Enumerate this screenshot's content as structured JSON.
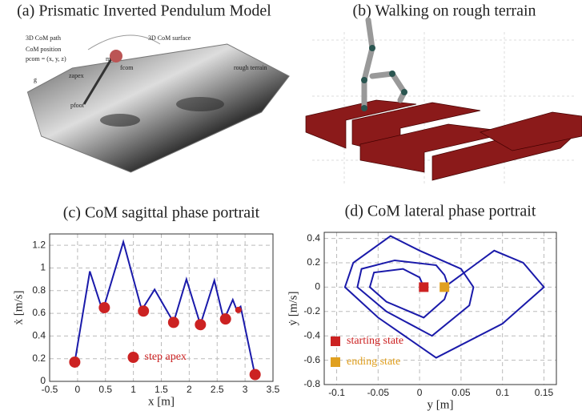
{
  "panels": [
    {
      "title": "(a) Prismatic Inverted Pendulum Model",
      "labels": [
        "3D CoM path",
        "3D CoM surface",
        "CoM position",
        "pcom = (x, y, z)",
        "zapex",
        "g",
        "fcom",
        "m",
        "rough terrain",
        "pfoot"
      ]
    },
    {
      "title": "(b) Walking on rough terrain"
    }
  ],
  "chart_data": [
    {
      "type": "line",
      "title": "(c) CoM sagittal phase portrait",
      "xlabel": "x [m]",
      "ylabel": "ẋ [m/s]",
      "xlim": [
        -0.5,
        3.5
      ],
      "ylim": [
        0,
        1.3
      ],
      "xticks": [
        -0.5,
        0,
        0.5,
        1,
        1.5,
        2,
        2.5,
        3,
        3.5
      ],
      "yticks": [
        0,
        0.2,
        0.4,
        0.6,
        0.8,
        1,
        1.2
      ],
      "grid": true,
      "legend": "lower center",
      "series": [
        {
          "color": "#1a1aaa",
          "x": [
            -0.05,
            0.22,
            0.45,
            0.82,
            1.15,
            1.38,
            1.72,
            1.95,
            2.2,
            2.45,
            2.62,
            2.78,
            2.85,
            2.92,
            3.18
          ],
          "values": [
            0.17,
            0.97,
            0.62,
            1.23,
            0.63,
            0.81,
            0.52,
            0.9,
            0.5,
            0.89,
            0.54,
            0.72,
            0.63,
            0.66,
            0.05
          ]
        },
        {
          "name": "step apex",
          "type": "scatter",
          "marker": "circle",
          "color": "#cc2222",
          "x": [
            -0.05,
            0.48,
            1.18,
            1.72,
            2.2,
            2.65,
            2.88,
            3.18
          ],
          "values": [
            0.17,
            0.65,
            0.62,
            0.52,
            0.5,
            0.55,
            0.63,
            0.06
          ]
        }
      ]
    },
    {
      "type": "line",
      "title": "(d) CoM lateral phase portrait",
      "xlabel": "y [m]",
      "ylabel": "ẏ [m/s]",
      "xlim": [
        -0.115,
        0.165
      ],
      "ylim": [
        -0.8,
        0.45
      ],
      "xticks": [
        -0.1,
        -0.05,
        0,
        0.05,
        0.1,
        0.15
      ],
      "yticks": [
        -0.8,
        -0.6,
        -0.4,
        -0.2,
        0,
        0.2,
        0.4
      ],
      "grid": true,
      "legend": "lower left",
      "series": [
        {
          "color": "#1a1aaa",
          "x": [
            0.005,
            0.0,
            -0.02,
            -0.055,
            -0.06,
            -0.04,
            0.005,
            0.03,
            0.035,
            0.03,
            0.02,
            -0.03,
            -0.07,
            -0.075,
            -0.04,
            0.015,
            0.06,
            0.065,
            0.05,
            0.0,
            -0.035,
            -0.08,
            -0.09,
            -0.05,
            0.02,
            0.1,
            0.15,
            0.125,
            0.09,
            0.07,
            0.04,
            0.03
          ],
          "values": [
            0,
            0.08,
            0.15,
            0.12,
            0,
            -0.12,
            -0.25,
            -0.1,
            0,
            0.1,
            0.18,
            0.22,
            0.15,
            0,
            -0.2,
            -0.4,
            -0.15,
            0,
            0.15,
            0.3,
            0.42,
            0.2,
            0,
            -0.25,
            -0.58,
            -0.3,
            0,
            0.2,
            0.3,
            0.2,
            0.05,
            0
          ]
        },
        {
          "name": "starting state",
          "type": "scatter",
          "marker": "square",
          "color": "#cc2222",
          "x": [
            0.005
          ],
          "values": [
            0
          ]
        },
        {
          "name": "ending state",
          "type": "scatter",
          "marker": "square",
          "color": "#e0a020",
          "x": [
            0.03
          ],
          "values": [
            0
          ]
        }
      ]
    }
  ]
}
